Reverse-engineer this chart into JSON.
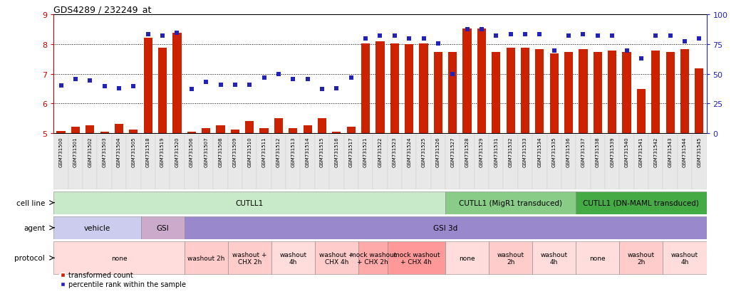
{
  "title": "GDS4289 / 232249_at",
  "samples": [
    "GSM731500",
    "GSM731501",
    "GSM731502",
    "GSM731503",
    "GSM731504",
    "GSM731505",
    "GSM731518",
    "GSM731519",
    "GSM731520",
    "GSM731506",
    "GSM731507",
    "GSM731508",
    "GSM731509",
    "GSM731510",
    "GSM731511",
    "GSM731512",
    "GSM731513",
    "GSM731514",
    "GSM731515",
    "GSM731516",
    "GSM731517",
    "GSM731521",
    "GSM731522",
    "GSM731523",
    "GSM731524",
    "GSM731525",
    "GSM731526",
    "GSM731527",
    "GSM731528",
    "GSM731529",
    "GSM731531",
    "GSM731532",
    "GSM731533",
    "GSM731534",
    "GSM731535",
    "GSM731536",
    "GSM731537",
    "GSM731538",
    "GSM731539",
    "GSM731540",
    "GSM731541",
    "GSM731542",
    "GSM731543",
    "GSM731544",
    "GSM731545"
  ],
  "bar_values": [
    5.08,
    5.22,
    5.28,
    5.05,
    5.32,
    5.12,
    8.2,
    7.88,
    8.38,
    5.05,
    5.18,
    5.28,
    5.12,
    5.42,
    5.18,
    5.5,
    5.18,
    5.28,
    5.5,
    5.05,
    5.22,
    8.02,
    8.08,
    8.02,
    7.98,
    8.02,
    7.72,
    7.72,
    8.52,
    8.52,
    7.72,
    7.88,
    7.88,
    7.82,
    7.68,
    7.72,
    7.82,
    7.72,
    7.78,
    7.72,
    6.48,
    7.78,
    7.72,
    7.82,
    7.18
  ],
  "dot_values": [
    6.6,
    6.82,
    6.78,
    6.58,
    6.52,
    6.58,
    8.32,
    8.28,
    8.38,
    6.48,
    6.72,
    6.62,
    6.62,
    6.62,
    6.88,
    6.98,
    6.82,
    6.82,
    6.48,
    6.52,
    6.88,
    8.18,
    8.28,
    8.28,
    8.18,
    8.18,
    8.02,
    6.98,
    8.48,
    8.48,
    8.28,
    8.32,
    8.32,
    8.32,
    7.78,
    8.28,
    8.32,
    8.28,
    8.28,
    7.78,
    7.52,
    8.28,
    8.28,
    8.08,
    8.18
  ],
  "ymin": 5.0,
  "ymax": 9.0,
  "yticks_left": [
    5,
    6,
    7,
    8,
    9
  ],
  "yticks_right": [
    0,
    25,
    50,
    75,
    100
  ],
  "bar_color": "#cc2200",
  "dot_color": "#2222bb",
  "cell_line_groups": [
    {
      "label": "CUTLL1",
      "start": 0,
      "end": 27,
      "color": "#c8eac8"
    },
    {
      "label": "CUTLL1 (MigR1 transduced)",
      "start": 27,
      "end": 36,
      "color": "#88cc88"
    },
    {
      "label": "CUTLL1 (DN-MAML transduced)",
      "start": 36,
      "end": 45,
      "color": "#44aa44"
    }
  ],
  "agent_groups": [
    {
      "label": "vehicle",
      "start": 0,
      "end": 6,
      "color": "#ccccee"
    },
    {
      "label": "GSI",
      "start": 6,
      "end": 9,
      "color": "#ccaacc"
    },
    {
      "label": "GSI 3d",
      "start": 9,
      "end": 45,
      "color": "#9988cc"
    }
  ],
  "protocol_groups": [
    {
      "label": "none",
      "start": 0,
      "end": 9,
      "color": "#ffdddd"
    },
    {
      "label": "washout 2h",
      "start": 9,
      "end": 12,
      "color": "#ffcccc"
    },
    {
      "label": "washout +\nCHX 2h",
      "start": 12,
      "end": 15,
      "color": "#ffcccc"
    },
    {
      "label": "washout\n4h",
      "start": 15,
      "end": 18,
      "color": "#ffdddd"
    },
    {
      "label": "washout +\nCHX 4h",
      "start": 18,
      "end": 21,
      "color": "#ffcccc"
    },
    {
      "label": "mock washout\n+ CHX 2h",
      "start": 21,
      "end": 23,
      "color": "#ffaaaa"
    },
    {
      "label": "mock washout\n+ CHX 4h",
      "start": 23,
      "end": 27,
      "color": "#ff9999"
    },
    {
      "label": "none",
      "start": 27,
      "end": 30,
      "color": "#ffdddd"
    },
    {
      "label": "washout\n2h",
      "start": 30,
      "end": 33,
      "color": "#ffcccc"
    },
    {
      "label": "washout\n4h",
      "start": 33,
      "end": 36,
      "color": "#ffdddd"
    },
    {
      "label": "none",
      "start": 36,
      "end": 39,
      "color": "#ffdddd"
    },
    {
      "label": "washout\n2h",
      "start": 39,
      "end": 42,
      "color": "#ffcccc"
    },
    {
      "label": "washout\n4h",
      "start": 42,
      "end": 45,
      "color": "#ffdddd"
    }
  ]
}
